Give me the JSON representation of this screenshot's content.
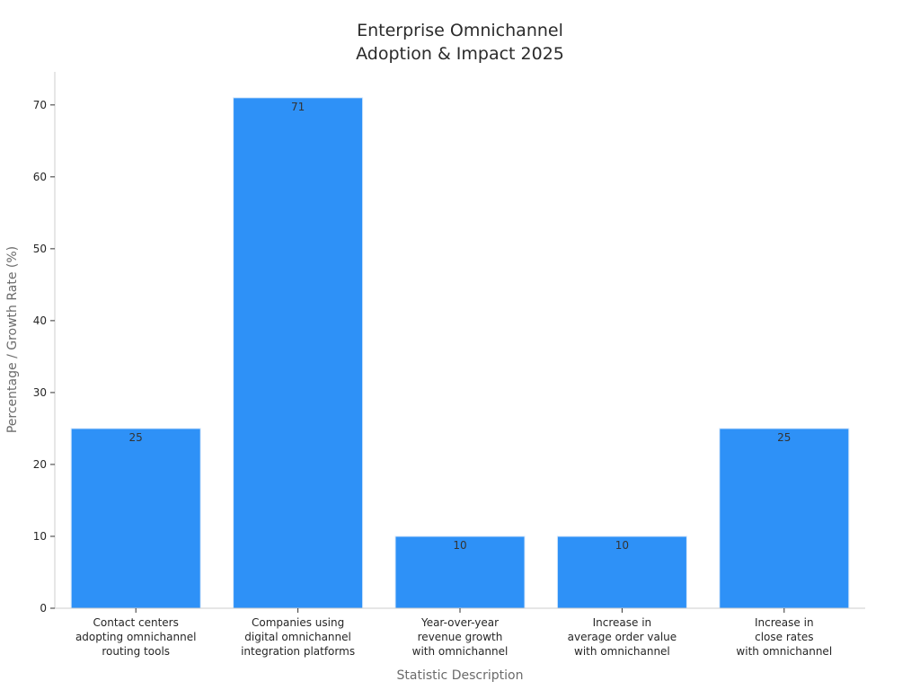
{
  "chart_data": {
    "type": "bar",
    "title_lines": [
      "Enterprise Omnichannel",
      "Adoption & Impact 2025"
    ],
    "xlabel": "Statistic Description",
    "ylabel": "Percentage / Growth Rate (%)",
    "ylim": [
      0,
      74.6
    ],
    "yticks": [
      0,
      10,
      20,
      30,
      40,
      50,
      60,
      70
    ],
    "grid": false,
    "bar_color": "#2e91f7",
    "categories": [
      [
        "Contact centers",
        "adopting omnichannel",
        "routing tools"
      ],
      [
        "Companies using",
        "digital omnichannel",
        "integration platforms"
      ],
      [
        "Year-over-year",
        "revenue growth",
        "with omnichannel"
      ],
      [
        "Increase in",
        "average order value",
        "with omnichannel"
      ],
      [
        "Increase in",
        "close rates",
        "with omnichannel"
      ]
    ],
    "values": [
      25,
      71,
      10,
      10,
      25
    ]
  }
}
